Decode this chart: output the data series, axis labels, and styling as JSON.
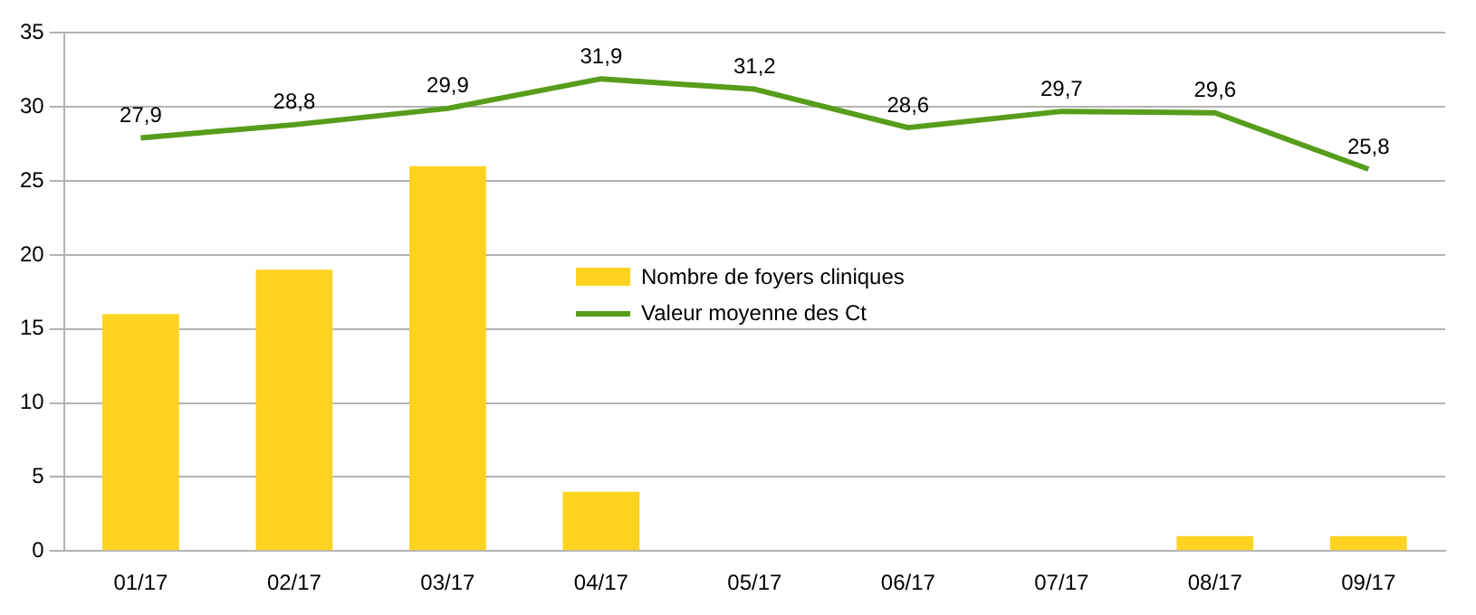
{
  "chart_data": {
    "type": "bar",
    "categories": [
      "01/17",
      "02/17",
      "03/17",
      "04/17",
      "05/17",
      "06/17",
      "07/17",
      "08/17",
      "09/17"
    ],
    "series": [
      {
        "name": "Nombre de foyers cliniques",
        "color": "#ffd320",
        "values": [
          16,
          19,
          26,
          4,
          0,
          0,
          0,
          1,
          1
        ]
      },
      {
        "name": "Valeur moyenne des Ct",
        "type": "line",
        "color": "#579d1c",
        "values": [
          27.9,
          28.8,
          29.9,
          31.9,
          31.2,
          28.6,
          29.7,
          29.6,
          25.8
        ],
        "value_labels": [
          "27,9",
          "28,8",
          "29,9",
          "31,9",
          "31,2",
          "28,6",
          "29,7",
          "29,6",
          "25,8"
        ]
      }
    ],
    "ylim": [
      0,
      35
    ],
    "yticks": [
      0,
      5,
      10,
      15,
      20,
      25,
      30,
      35
    ],
    "grid": "y",
    "legend": "center",
    "marker": "none"
  }
}
